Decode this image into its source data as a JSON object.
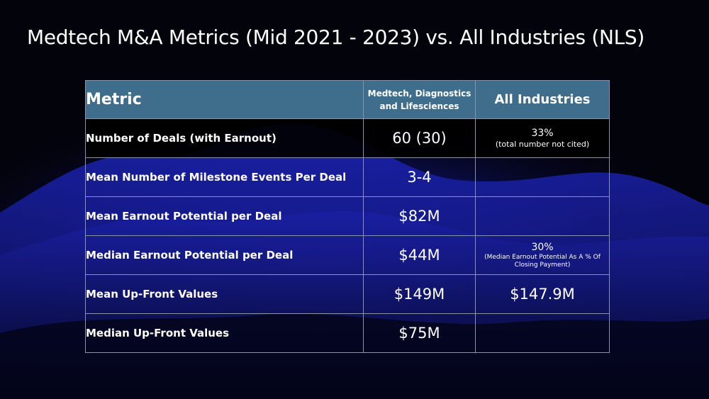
{
  "slide": {
    "title": "Medtech M&A Metrics (Mid 2021 - 2023) vs. All Industries (NLS)"
  },
  "table": {
    "headers": {
      "metric": "Metric",
      "medtech_line1": "Medtech, Diagnostics",
      "medtech_line2": "and Lifesciences",
      "all_industries": "All Industries"
    },
    "rows": [
      {
        "metric": "Number of Deals (with Earnout)",
        "medtech": "60 (30)",
        "all_main": "33%",
        "all_note": "(total number not cited)"
      },
      {
        "metric": "Mean Number of Milestone Events Per Deal",
        "medtech": "3-4",
        "all_main": ""
      },
      {
        "metric": "Mean Earnout Potential per Deal",
        "medtech": "$82M",
        "all_main": ""
      },
      {
        "metric": "Median Earnout Potential per Deal",
        "medtech": "$44M",
        "all_main": "30%",
        "all_note_line1": "(Median Earnout Potential As A % Of",
        "all_note_line2": "Closing Payment)"
      },
      {
        "metric": "Mean Up-Front Values",
        "medtech": "$149M",
        "all_main": "$147.9M"
      },
      {
        "metric": "Median Up-Front Values",
        "medtech": "$75M",
        "all_main": ""
      }
    ]
  },
  "colors": {
    "background": "#03030c",
    "header_fill": "#3f6e8c",
    "border": "#8c92ad",
    "wave_blue": "#1a1f9e"
  }
}
